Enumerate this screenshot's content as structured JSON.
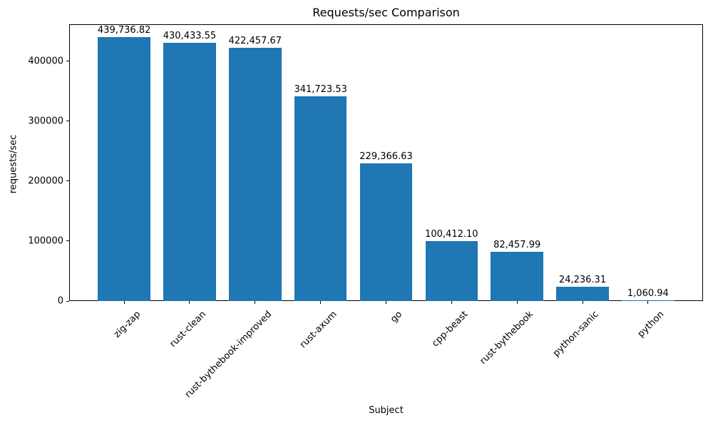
{
  "chart_data": {
    "type": "bar",
    "title": "Requests/sec Comparison",
    "xlabel": "Subject",
    "ylabel": "requests/sec",
    "categories": [
      "zig-zap",
      "rust-clean",
      "rust-bythebook-improved",
      "rust-axum",
      "go",
      "cpp-beast",
      "rust-bythebook",
      "python-sanic",
      "python"
    ],
    "values": [
      439736.82,
      430433.55,
      422457.67,
      341723.53,
      229366.63,
      100412.1,
      82457.99,
      24236.31,
      1060.94
    ],
    "value_labels": [
      "439,736.82",
      "430,433.55",
      "422,457.67",
      "341,723.53",
      "229,366.63",
      "100,412.10",
      "82,457.99",
      "24,236.31",
      "1,060.94"
    ],
    "bar_color": "#1f77b4",
    "bar_width": 0.8,
    "yticks": [
      0,
      100000,
      200000,
      300000,
      400000
    ],
    "ytick_labels": [
      "0",
      "100000",
      "200000",
      "300000",
      "400000"
    ],
    "ylim": [
      0,
      461723.66
    ],
    "xtick_rotation_deg": 45,
    "grid": false,
    "legend": "none",
    "text_color": "#000000",
    "axis_color": "#000000",
    "background_color": "#ffffff"
  }
}
